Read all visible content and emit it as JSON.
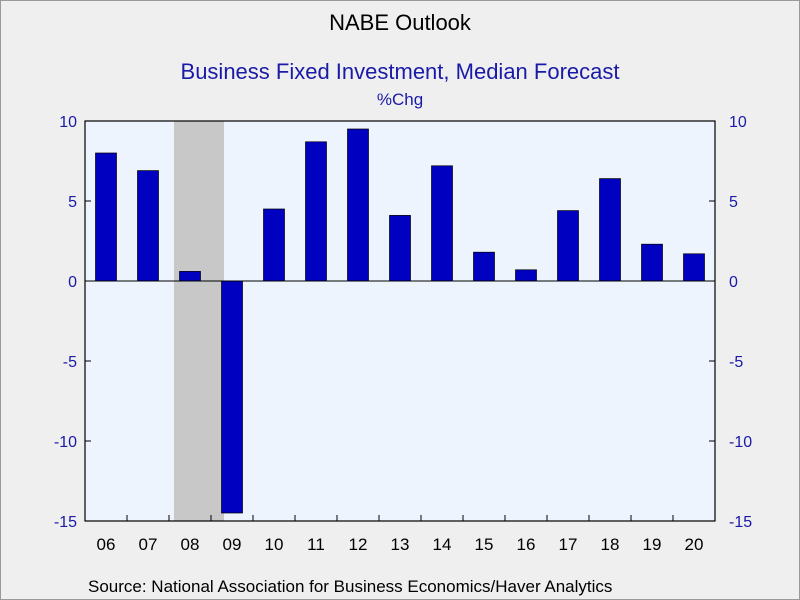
{
  "header": {
    "title": "NABE Outlook",
    "subtitle": "Business Fixed Investment, Median Forecast",
    "unit": "%Chg"
  },
  "footer": {
    "source": "Source:  National Association for Business Economics/Haver Analytics"
  },
  "colors": {
    "bar": "#0000c0",
    "plot_background": "#eef4fd",
    "recession_shade": "#c8c8c8",
    "axis_text": "#1a1aa8"
  },
  "chart_data": {
    "type": "bar",
    "title": "NABE Outlook",
    "subtitle": "Business Fixed Investment, Median Forecast",
    "ylabel": "%Chg",
    "categories": [
      "06",
      "07",
      "08",
      "09",
      "10",
      "11",
      "12",
      "13",
      "14",
      "15",
      "16",
      "17",
      "18",
      "19",
      "20"
    ],
    "values": [
      8.0,
      6.9,
      0.6,
      -14.5,
      4.5,
      8.7,
      9.5,
      4.1,
      7.2,
      1.8,
      0.7,
      4.4,
      6.4,
      2.3,
      1.7
    ],
    "ylim": [
      -15,
      10
    ],
    "yticks": [
      10,
      5,
      0,
      -5,
      -10,
      -15
    ],
    "ytick_labels": [
      "10",
      "5",
      "0",
      "-5",
      "-10",
      "-15"
    ],
    "y_axis_sides": "left and right",
    "shaded_period": {
      "from": "08",
      "to": "09",
      "meaning": "recession"
    },
    "grid": false,
    "legend": "none"
  }
}
